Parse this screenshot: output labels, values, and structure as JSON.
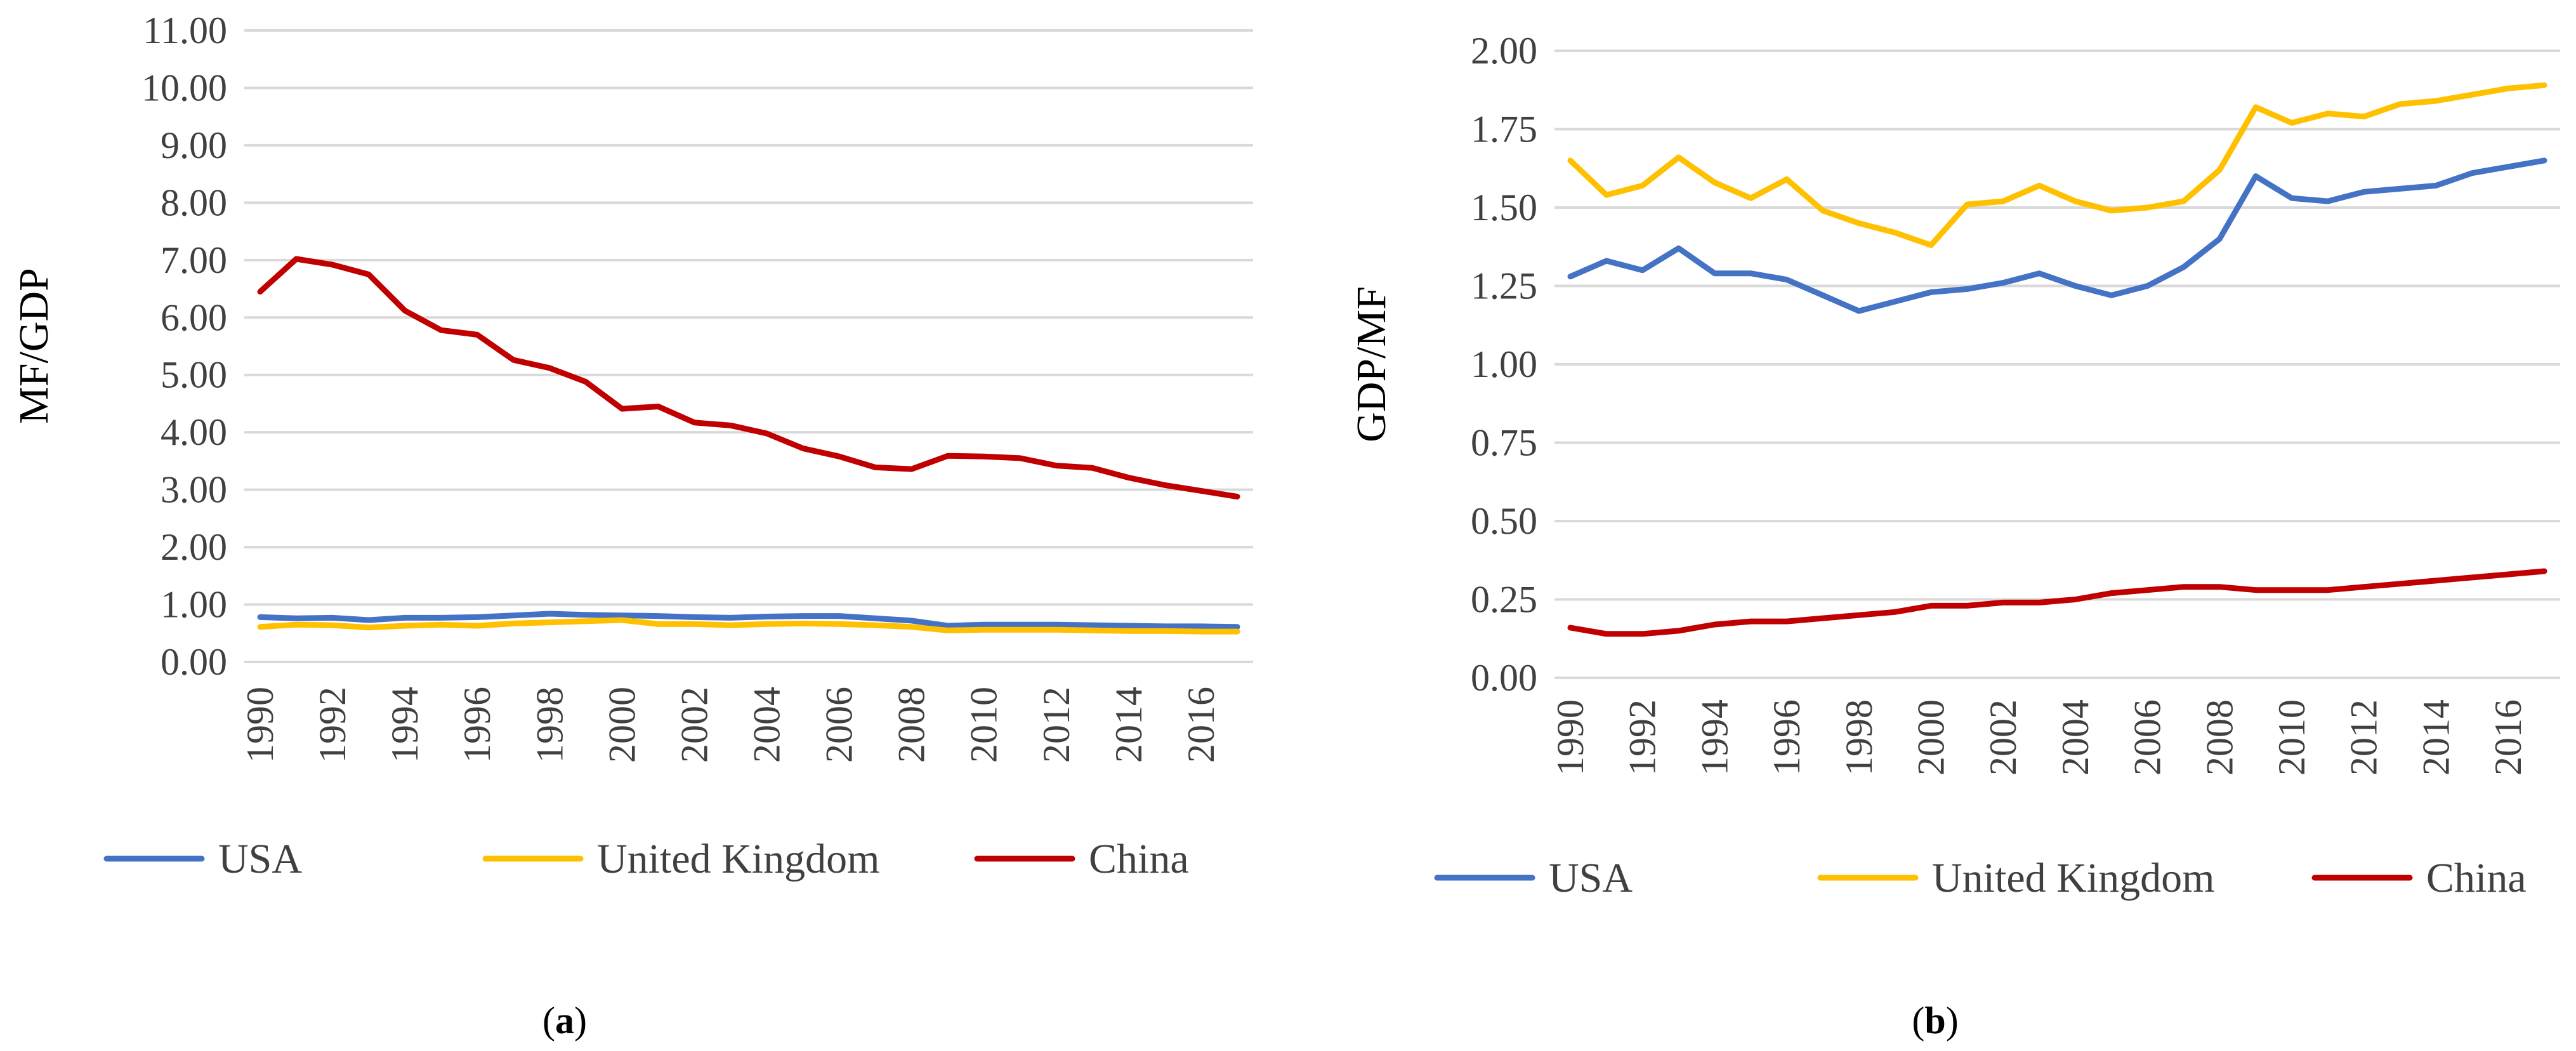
{
  "chart_data": [
    {
      "type": "line",
      "panel": "a",
      "caption_open": "(",
      "caption_letter": "a",
      "caption_close": ")",
      "title": "",
      "xlabel": "",
      "ylabel": "MF/GDP",
      "ylim": [
        0,
        11
      ],
      "y_ticks": [
        "0.00",
        "1.00",
        "2.00",
        "3.00",
        "4.00",
        "5.00",
        "6.00",
        "7.00",
        "8.00",
        "9.00",
        "10.00",
        "11.00"
      ],
      "x": [
        1990,
        1991,
        1992,
        1993,
        1994,
        1995,
        1996,
        1997,
        1998,
        1999,
        2000,
        2001,
        2002,
        2003,
        2004,
        2005,
        2006,
        2007,
        2008,
        2009,
        2010,
        2011,
        2012,
        2013,
        2014,
        2015,
        2016,
        2017
      ],
      "x_ticks": [
        "1990",
        "1992",
        "1994",
        "1996",
        "1998",
        "2000",
        "2002",
        "2004",
        "2006",
        "2008",
        "2010",
        "2012",
        "2014",
        "2016"
      ],
      "grid": true,
      "legend_position": "bottom",
      "series": [
        {
          "name": "USA",
          "color": "#4472C4",
          "values": [
            0.78,
            0.76,
            0.77,
            0.73,
            0.77,
            0.77,
            0.78,
            0.81,
            0.84,
            0.82,
            0.81,
            0.8,
            0.78,
            0.77,
            0.79,
            0.8,
            0.8,
            0.76,
            0.72,
            0.63,
            0.65,
            0.65,
            0.65,
            0.64,
            0.63,
            0.62,
            0.62,
            0.61
          ]
        },
        {
          "name": "United Kingdom",
          "color": "#FFC000",
          "values": [
            0.61,
            0.65,
            0.64,
            0.6,
            0.63,
            0.65,
            0.63,
            0.67,
            0.69,
            0.71,
            0.73,
            0.66,
            0.66,
            0.64,
            0.66,
            0.67,
            0.66,
            0.64,
            0.61,
            0.55,
            0.56,
            0.56,
            0.56,
            0.55,
            0.54,
            0.54,
            0.53,
            0.53
          ]
        },
        {
          "name": "China",
          "color": "#C00000",
          "values": [
            6.45,
            7.02,
            6.92,
            6.75,
            6.12,
            5.78,
            5.7,
            5.26,
            5.12,
            4.88,
            4.41,
            4.45,
            4.17,
            4.12,
            3.98,
            3.72,
            3.58,
            3.39,
            3.36,
            3.59,
            3.58,
            3.55,
            3.42,
            3.38,
            3.21,
            3.08,
            2.98,
            2.88
          ]
        }
      ]
    },
    {
      "type": "line",
      "panel": "b",
      "caption_open": "(",
      "caption_letter": "b",
      "caption_close": ")",
      "title": "",
      "xlabel": "",
      "ylabel": "GDP/MF",
      "ylim": [
        0,
        2
      ],
      "y_ticks": [
        "0.00",
        "0.25",
        "0.50",
        "0.75",
        "1.00",
        "1.25",
        "1.50",
        "1.75",
        "2.00"
      ],
      "x": [
        1990,
        1991,
        1992,
        1993,
        1994,
        1995,
        1996,
        1997,
        1998,
        1999,
        2000,
        2001,
        2002,
        2003,
        2004,
        2005,
        2006,
        2007,
        2008,
        2009,
        2010,
        2011,
        2012,
        2013,
        2014,
        2015,
        2016,
        2017
      ],
      "x_ticks": [
        "1990",
        "1992",
        "1994",
        "1996",
        "1998",
        "2000",
        "2002",
        "2004",
        "2006",
        "2008",
        "2010",
        "2012",
        "2014",
        "2016"
      ],
      "grid": true,
      "legend_position": "bottom",
      "series": [
        {
          "name": "USA",
          "color": "#4472C4",
          "values": [
            1.28,
            1.33,
            1.3,
            1.37,
            1.29,
            1.29,
            1.27,
            1.22,
            1.17,
            1.2,
            1.23,
            1.24,
            1.26,
            1.29,
            1.25,
            1.22,
            1.25,
            1.31,
            1.4,
            1.6,
            1.53,
            1.52,
            1.55,
            1.56,
            1.57,
            1.61,
            1.63,
            1.65
          ]
        },
        {
          "name": "United Kingdom",
          "color": "#FFC000",
          "values": [
            1.65,
            1.54,
            1.57,
            1.66,
            1.58,
            1.53,
            1.59,
            1.49,
            1.45,
            1.42,
            1.38,
            1.51,
            1.52,
            1.57,
            1.52,
            1.49,
            1.5,
            1.52,
            1.62,
            1.82,
            1.77,
            1.8,
            1.79,
            1.83,
            1.84,
            1.86,
            1.88,
            1.89
          ]
        },
        {
          "name": "China",
          "color": "#C00000",
          "values": [
            0.16,
            0.14,
            0.14,
            0.15,
            0.17,
            0.18,
            0.18,
            0.19,
            0.2,
            0.21,
            0.23,
            0.23,
            0.24,
            0.24,
            0.25,
            0.27,
            0.28,
            0.29,
            0.29,
            0.28,
            0.28,
            0.28,
            0.29,
            0.3,
            0.31,
            0.32,
            0.33,
            0.34
          ]
        }
      ]
    }
  ]
}
